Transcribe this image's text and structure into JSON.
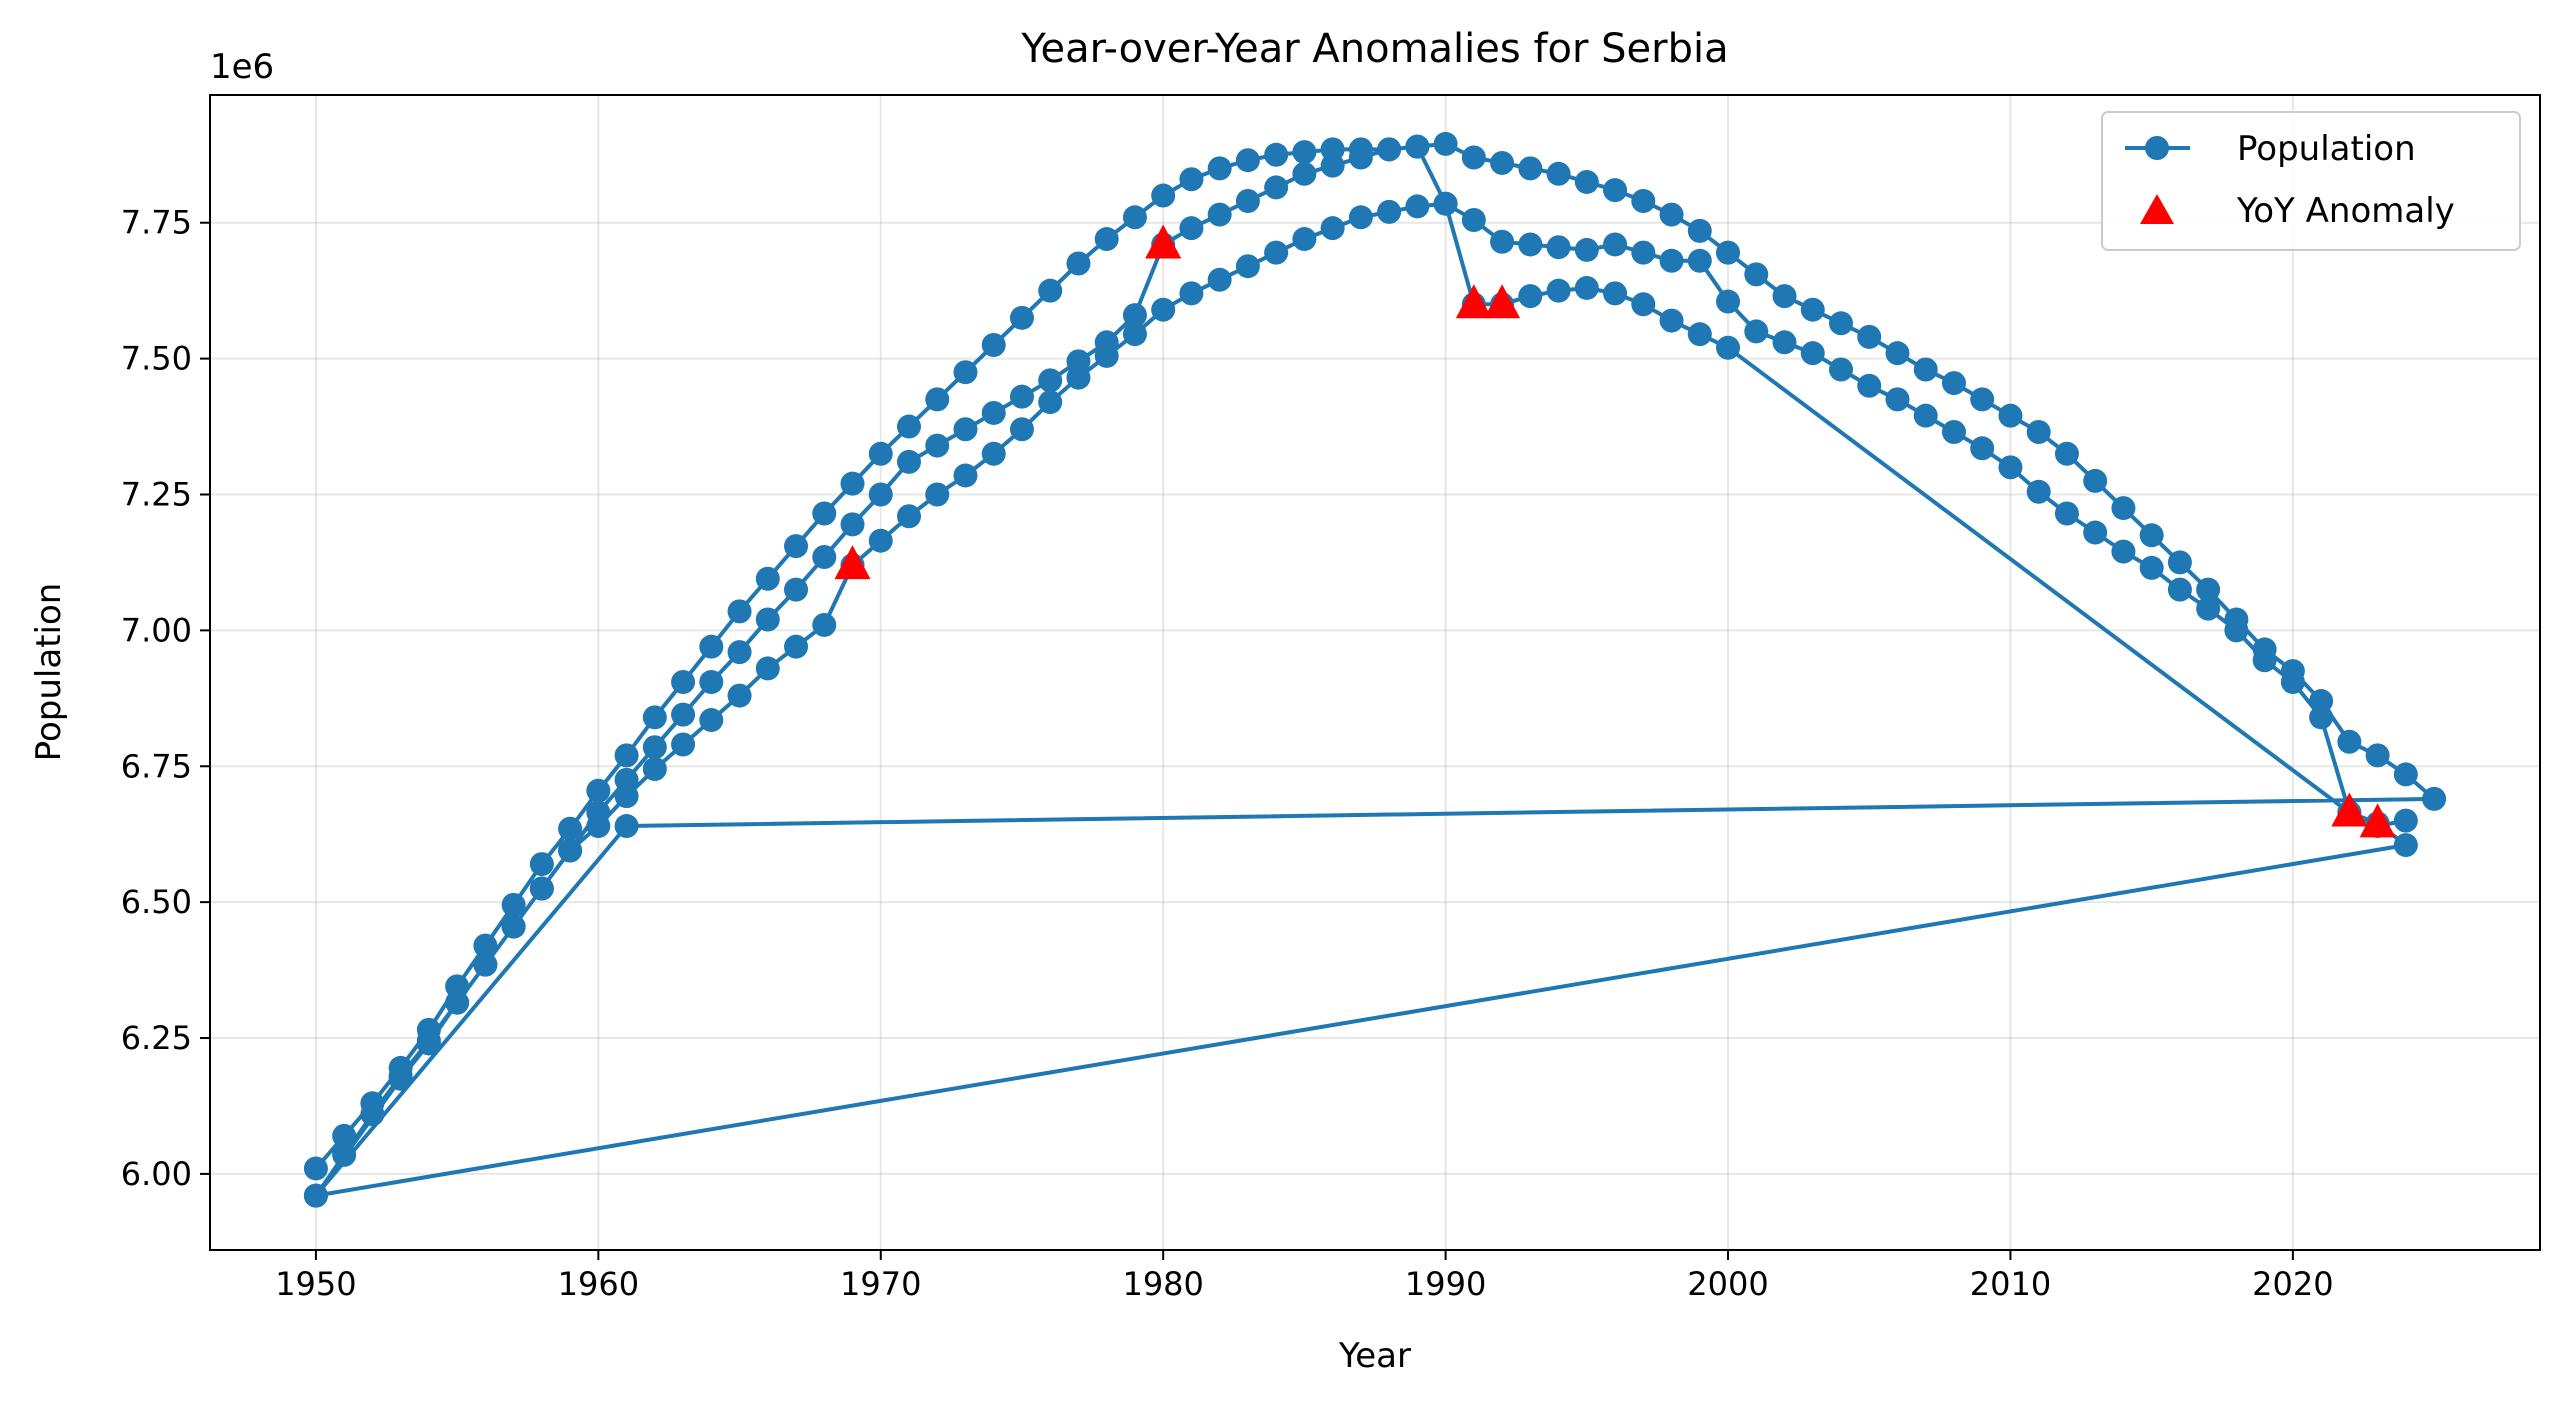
{
  "chart_data": {
    "type": "line",
    "title": "Year-over-Year Anomalies for Serbia",
    "xlabel": "Year",
    "ylabel": "Population",
    "y_offset_label": "1e6",
    "xlim": [
      1946.25,
      2028.75
    ],
    "ylim": [
      5.86,
      7.985
    ],
    "x_ticks": [
      1950,
      1960,
      1970,
      1980,
      1990,
      2000,
      2010,
      2020
    ],
    "y_ticks": [
      6.0,
      6.25,
      6.5,
      6.75,
      7.0,
      7.25,
      7.5,
      7.75
    ],
    "y_tick_labels": [
      "6.00",
      "6.25",
      "6.50",
      "6.75",
      "7.00",
      "7.25",
      "7.50",
      "7.75"
    ],
    "grid": true,
    "legend_position": "top-right",
    "series": [
      {
        "name": "Population",
        "color": "#1f77b4",
        "marker": "circle",
        "points": [
          [
            1950,
            6.01
          ],
          [
            1951,
            6.07
          ],
          [
            1952,
            6.13
          ],
          [
            1953,
            6.195
          ],
          [
            1954,
            6.265
          ],
          [
            1955,
            6.345
          ],
          [
            1956,
            6.42
          ],
          [
            1957,
            6.495
          ],
          [
            1958,
            6.57
          ],
          [
            1959,
            6.635
          ],
          [
            1960,
            6.705
          ],
          [
            1961,
            6.77
          ],
          [
            1962,
            6.84
          ],
          [
            1963,
            6.905
          ],
          [
            1964,
            6.97
          ],
          [
            1965,
            7.035
          ],
          [
            1966,
            7.095
          ],
          [
            1967,
            7.155
          ],
          [
            1968,
            7.215
          ],
          [
            1969,
            7.27
          ],
          [
            1970,
            7.325
          ],
          [
            1971,
            7.375
          ],
          [
            1972,
            7.425
          ],
          [
            1973,
            7.475
          ],
          [
            1974,
            7.525
          ],
          [
            1975,
            7.575
          ],
          [
            1976,
            7.625
          ],
          [
            1977,
            7.675
          ],
          [
            1978,
            7.72
          ],
          [
            1979,
            7.76
          ],
          [
            1980,
            7.8
          ],
          [
            1981,
            7.83
          ],
          [
            1982,
            7.85
          ],
          [
            1983,
            7.865
          ],
          [
            1984,
            7.875
          ],
          [
            1985,
            7.88
          ],
          [
            1986,
            7.885
          ],
          [
            1987,
            7.885
          ],
          [
            1988,
            7.885
          ],
          [
            1989,
            7.89
          ],
          [
            1990,
            7.895
          ],
          [
            1991,
            7.87
          ],
          [
            1992,
            7.86
          ],
          [
            1993,
            7.85
          ],
          [
            1994,
            7.84
          ],
          [
            1995,
            7.825
          ],
          [
            1996,
            7.81
          ],
          [
            1997,
            7.79
          ],
          [
            1998,
            7.765
          ],
          [
            1999,
            7.735
          ],
          [
            2000,
            7.695
          ],
          [
            2001,
            7.655
          ],
          [
            2002,
            7.615
          ],
          [
            2003,
            7.59
          ],
          [
            2004,
            7.565
          ],
          [
            2005,
            7.54
          ],
          [
            2006,
            7.51
          ],
          [
            2007,
            7.48
          ],
          [
            2008,
            7.455
          ],
          [
            2009,
            7.425
          ],
          [
            2010,
            7.395
          ],
          [
            2011,
            7.365
          ],
          [
            2012,
            7.325
          ],
          [
            2013,
            7.275
          ],
          [
            2014,
            7.225
          ],
          [
            2015,
            7.175
          ],
          [
            2016,
            7.125
          ],
          [
            2017,
            7.075
          ],
          [
            2018,
            7.02
          ],
          [
            2019,
            6.965
          ],
          [
            2020,
            6.925
          ],
          [
            2021,
            6.87
          ],
          [
            2022,
            6.795
          ],
          [
            2023,
            6.77
          ],
          [
            2024,
            6.735
          ],
          [
            2025,
            6.69
          ],
          [
            1961,
            6.64
          ],
          [
            1950,
            5.96
          ],
          [
            1951,
            6.035
          ],
          [
            1952,
            6.11
          ],
          [
            1953,
            6.18
          ],
          [
            1954,
            6.245
          ],
          [
            1955,
            6.315
          ],
          [
            1956,
            6.385
          ],
          [
            1957,
            6.455
          ],
          [
            1958,
            6.525
          ],
          [
            1959,
            6.595
          ],
          [
            1960,
            6.665
          ],
          [
            1961,
            6.725
          ],
          [
            1962,
            6.785
          ],
          [
            1963,
            6.845
          ],
          [
            1964,
            6.905
          ],
          [
            1965,
            6.96
          ],
          [
            1966,
            7.02
          ],
          [
            1967,
            7.075
          ],
          [
            1968,
            7.135
          ],
          [
            1969,
            7.195
          ],
          [
            1970,
            7.25
          ],
          [
            1971,
            7.31
          ],
          [
            1972,
            7.34
          ],
          [
            1973,
            7.37
          ],
          [
            1974,
            7.4
          ],
          [
            1975,
            7.43
          ],
          [
            1976,
            7.46
          ],
          [
            1977,
            7.495
          ],
          [
            1978,
            7.53
          ],
          [
            1979,
            7.58
          ],
          [
            1980,
            7.71
          ],
          [
            1981,
            7.74
          ],
          [
            1982,
            7.765
          ],
          [
            1983,
            7.79
          ],
          [
            1984,
            7.815
          ],
          [
            1985,
            7.84
          ],
          [
            1986,
            7.855
          ],
          [
            1987,
            7.87
          ],
          [
            1988,
            7.885
          ],
          [
            1989,
            7.89
          ],
          [
            1990,
            7.785
          ],
          [
            1991,
            7.755
          ],
          [
            1992,
            7.715
          ],
          [
            1993,
            7.71
          ],
          [
            1994,
            7.705
          ],
          [
            1995,
            7.7
          ],
          [
            1996,
            7.71
          ],
          [
            1997,
            7.695
          ],
          [
            1998,
            7.68
          ],
          [
            1999,
            7.68
          ],
          [
            2000,
            7.605
          ],
          [
            2001,
            7.55
          ],
          [
            2002,
            7.53
          ],
          [
            2003,
            7.51
          ],
          [
            2004,
            7.48
          ],
          [
            2005,
            7.45
          ],
          [
            2006,
            7.425
          ],
          [
            2007,
            7.395
          ],
          [
            2008,
            7.365
          ],
          [
            2009,
            7.335
          ],
          [
            2010,
            7.3
          ],
          [
            2011,
            7.255
          ],
          [
            2012,
            7.215
          ],
          [
            2013,
            7.18
          ],
          [
            2014,
            7.145
          ],
          [
            2015,
            7.115
          ],
          [
            2016,
            7.075
          ],
          [
            2017,
            7.04
          ],
          [
            2018,
            7.0
          ],
          [
            2019,
            6.945
          ],
          [
            2020,
            6.905
          ],
          [
            2021,
            6.84
          ],
          [
            2022,
            6.665
          ],
          [
            2023,
            6.645
          ],
          [
            2024,
            6.605
          ],
          [
            1950,
            5.96
          ],
          [
            1953,
            6.175
          ],
          [
            1954,
            6.24
          ],
          [
            1955,
            6.315
          ],
          [
            1956,
            6.385
          ],
          [
            1957,
            6.455
          ],
          [
            1958,
            6.525
          ],
          [
            1959,
            6.595
          ],
          [
            1960,
            6.64
          ],
          [
            1961,
            6.695
          ],
          [
            1962,
            6.745
          ],
          [
            1963,
            6.79
          ],
          [
            1964,
            6.835
          ],
          [
            1965,
            6.88
          ],
          [
            1966,
            6.93
          ],
          [
            1967,
            6.97
          ],
          [
            1968,
            7.01
          ],
          [
            1969,
            7.12
          ],
          [
            1970,
            7.165
          ],
          [
            1971,
            7.21
          ],
          [
            1972,
            7.25
          ],
          [
            1973,
            7.285
          ],
          [
            1974,
            7.325
          ],
          [
            1975,
            7.37
          ],
          [
            1976,
            7.42
          ],
          [
            1977,
            7.465
          ],
          [
            1978,
            7.505
          ],
          [
            1979,
            7.545
          ],
          [
            1980,
            7.59
          ],
          [
            1981,
            7.62
          ],
          [
            1982,
            7.645
          ],
          [
            1983,
            7.67
          ],
          [
            1984,
            7.695
          ],
          [
            1985,
            7.72
          ],
          [
            1986,
            7.74
          ],
          [
            1987,
            7.76
          ],
          [
            1988,
            7.77
          ],
          [
            1989,
            7.78
          ],
          [
            1990,
            7.785
          ],
          [
            1991,
            7.6
          ],
          [
            1992,
            7.6
          ],
          [
            1993,
            7.615
          ],
          [
            1994,
            7.625
          ],
          [
            1995,
            7.63
          ],
          [
            1996,
            7.62
          ],
          [
            1997,
            7.6
          ],
          [
            1998,
            7.57
          ],
          [
            1999,
            7.545
          ],
          [
            2000,
            7.52
          ],
          [
            2022,
            6.665
          ],
          [
            2023,
            6.64
          ],
          [
            2024,
            6.65
          ]
        ]
      },
      {
        "name": "YoY Anomaly",
        "color": "#ff0000",
        "marker": "triangle",
        "points": [
          [
            1969,
            7.12
          ],
          [
            1980,
            7.71
          ],
          [
            1991,
            7.6
          ],
          [
            1992,
            7.6
          ],
          [
            2022,
            6.665
          ],
          [
            2023,
            6.645
          ]
        ]
      }
    ]
  }
}
